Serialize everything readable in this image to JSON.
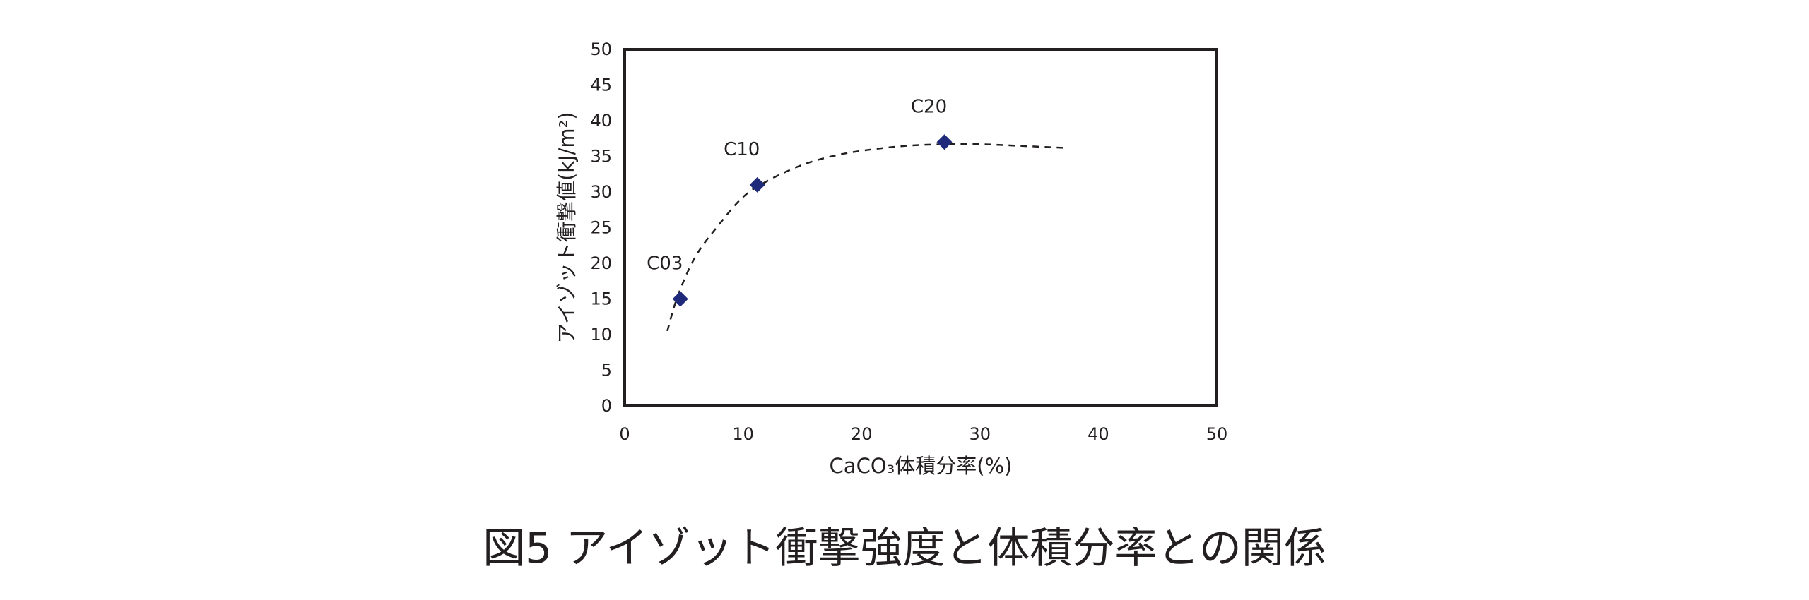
{
  "caption": "図5 アイゾット衝撃強度と体積分率との関係",
  "chart_data": {
    "type": "scatter",
    "xlabel": "CaCO₃体積分率(%)",
    "ylabel": "アイゾット衝撃値(kJ/m²)",
    "xlim": [
      0,
      50
    ],
    "ylim": [
      0,
      50
    ],
    "xticks": [
      0,
      10,
      20,
      30,
      40,
      50
    ],
    "yticks": [
      0,
      5,
      10,
      15,
      20,
      25,
      30,
      35,
      40,
      45,
      50
    ],
    "points": [
      {
        "label": "C03",
        "x": 4.7,
        "y": 15
      },
      {
        "label": "C10",
        "x": 11.2,
        "y": 31
      },
      {
        "label": "C20",
        "x": 27.0,
        "y": 37
      }
    ],
    "marker_color": "#1f2a7a",
    "trend_line": {
      "style": "dashed",
      "x": [
        3.6,
        4.5,
        6,
        8,
        10,
        12,
        15,
        18,
        21,
        24,
        27,
        30,
        33,
        37
      ],
      "y": [
        10.5,
        15.5,
        21,
        25.5,
        29.3,
        31.5,
        33.8,
        35.2,
        36.0,
        36.5,
        36.7,
        36.7,
        36.5,
        36.2
      ]
    },
    "grid": false
  }
}
